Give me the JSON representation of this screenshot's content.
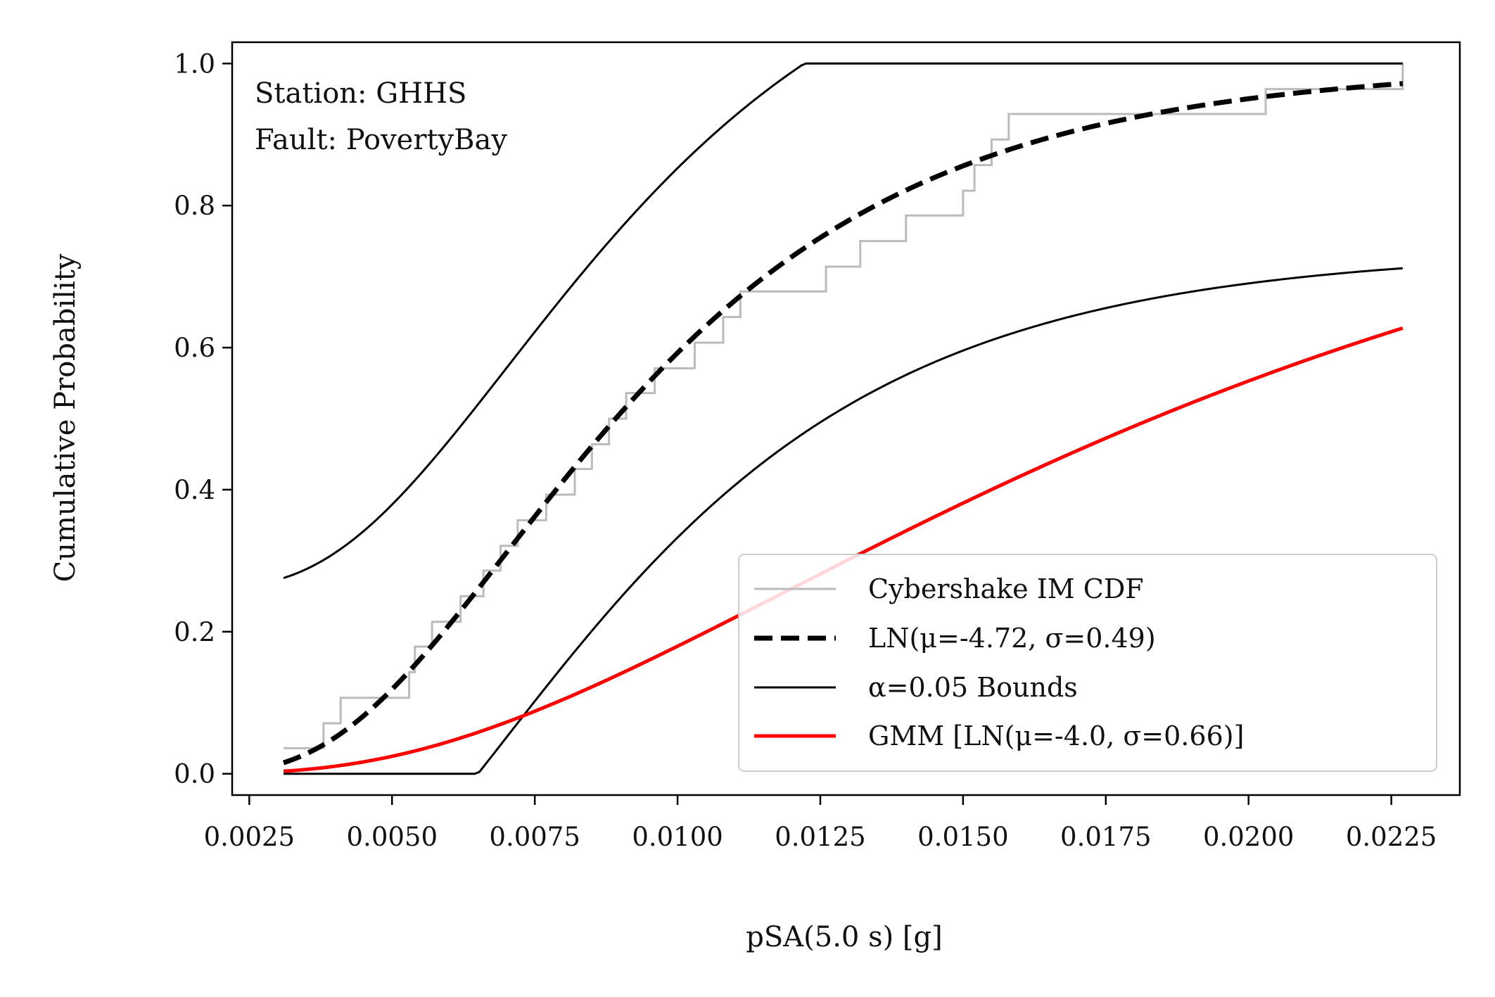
{
  "chart_data": {
    "type": "line",
    "title": "",
    "xlabel": "pSA(5.0 s) [g]",
    "ylabel": "Cumulative Probability",
    "xlim": [
      0.0022,
      0.0237
    ],
    "ylim": [
      -0.03,
      1.03
    ],
    "xticks": [
      0.0025,
      0.005,
      0.0075,
      0.01,
      0.0125,
      0.015,
      0.0175,
      0.02,
      0.0225
    ],
    "xtick_labels": [
      "0.0025",
      "0.0050",
      "0.0075",
      "0.0100",
      "0.0125",
      "0.0150",
      "0.0175",
      "0.0200",
      "0.0225"
    ],
    "yticks": [
      0.0,
      0.2,
      0.4,
      0.6,
      0.8,
      1.0
    ],
    "ytick_labels": [
      "0.0",
      "0.2",
      "0.4",
      "0.6",
      "0.8",
      "1.0"
    ],
    "annotations": [
      "Station: GHHS",
      "Fault: PovertyBay"
    ],
    "legend_position": "lower-right",
    "grid": false,
    "series": [
      {
        "name": "Cybershake IM CDF",
        "style": "step",
        "color": "#bbbbbb",
        "x": [
          0.0031,
          0.0038,
          0.0041,
          0.0053,
          0.0054,
          0.0057,
          0.0062,
          0.0066,
          0.0069,
          0.0072,
          0.0077,
          0.0082,
          0.0085,
          0.0088,
          0.0091,
          0.0096,
          0.0103,
          0.0108,
          0.0111,
          0.0126,
          0.0132,
          0.014,
          0.015,
          0.0152,
          0.0155,
          0.0158,
          0.0203,
          0.0227
        ],
        "y": [
          0.036,
          0.071,
          0.107,
          0.143,
          0.179,
          0.214,
          0.25,
          0.286,
          0.321,
          0.357,
          0.393,
          0.429,
          0.464,
          0.5,
          0.536,
          0.571,
          0.607,
          0.643,
          0.679,
          0.714,
          0.75,
          0.786,
          0.821,
          0.857,
          0.893,
          0.929,
          0.964,
          1.0
        ]
      },
      {
        "name": "LN(μ=-4.72, σ=0.49)",
        "style": "dashed",
        "color": "#000000",
        "mu": -4.72,
        "sigma": 0.49
      },
      {
        "name": "α=0.05 Bounds",
        "style": "solid-thin",
        "color": "#000000",
        "bound_offset": 0.26
      },
      {
        "name": "GMM [LN(μ=-4.0, σ=0.66)]",
        "style": "solid",
        "color": "#ff0000",
        "mu": -4.0,
        "sigma": 0.66
      }
    ],
    "curve_range": [
      0.0031,
      0.0227
    ]
  }
}
